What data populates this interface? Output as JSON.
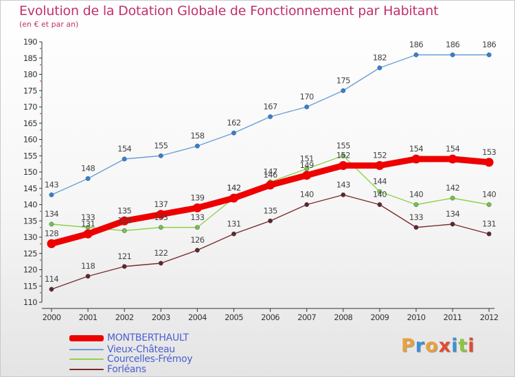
{
  "title": "Evolution de la Dotation Globale de Fonctionnement par Habitant",
  "subtitle": "(en € et par an)",
  "colors": {
    "title": "#c0306a",
    "axis": "#333333",
    "grid": "#dddddd",
    "legend_text": "#4a5fd0"
  },
  "logo": {
    "text": "Proxiti",
    "colors": [
      "#e8a23a",
      "#3f8fd6",
      "#e8a23a",
      "#e34a2e",
      "#3f8fd6",
      "#8cc63f",
      "#e34a2e"
    ]
  },
  "chart_data": {
    "type": "line",
    "title": "Evolution de la Dotation Globale de Fonctionnement par Habitant",
    "subtitle": "(en € et par an)",
    "xlabel": "",
    "ylabel": "",
    "x": [
      "2000",
      "2001",
      "2002",
      "2003",
      "2004",
      "2005",
      "2006",
      "2007",
      "2008",
      "2009",
      "2010",
      "2011",
      "2012"
    ],
    "ylim": [
      110,
      190
    ],
    "yticks": [
      110,
      115,
      120,
      125,
      130,
      135,
      140,
      145,
      150,
      155,
      160,
      165,
      170,
      175,
      180,
      185,
      190
    ],
    "grid": false,
    "legend_position": "bottom-left",
    "series": [
      {
        "name": "Vieux-Château",
        "color": "#6a9ed4",
        "marker_color": "#3a7fc4",
        "bold": false,
        "values": [
          143,
          148,
          154,
          155,
          158,
          162,
          167,
          170,
          175,
          182,
          186,
          186,
          186
        ]
      },
      {
        "name": "Courcelles-Frémoy",
        "color": "#8ed14a",
        "marker_color": "#7cc13a",
        "bold": false,
        "values": [
          134,
          133,
          132,
          133,
          133,
          142,
          147,
          151,
          155,
          144,
          140,
          142,
          140
        ]
      },
      {
        "name": "Forléans",
        "color": "#7a2a2a",
        "marker_color": "#6b2222",
        "bold": false,
        "values": [
          114,
          118,
          121,
          122,
          126,
          131,
          135,
          140,
          143,
          140,
          133,
          134,
          131
        ]
      },
      {
        "name": "MONTBERTHAULT",
        "color": "#ee0000",
        "marker_color": "#ee0000",
        "bold": true,
        "values": [
          128,
          131,
          135,
          137,
          139,
          142,
          146,
          149,
          152,
          152,
          154,
          154,
          153
        ]
      }
    ],
    "legend_order": [
      "MONTBERTHAULT",
      "Vieux-Château",
      "Courcelles-Frémoy",
      "Forléans"
    ]
  }
}
